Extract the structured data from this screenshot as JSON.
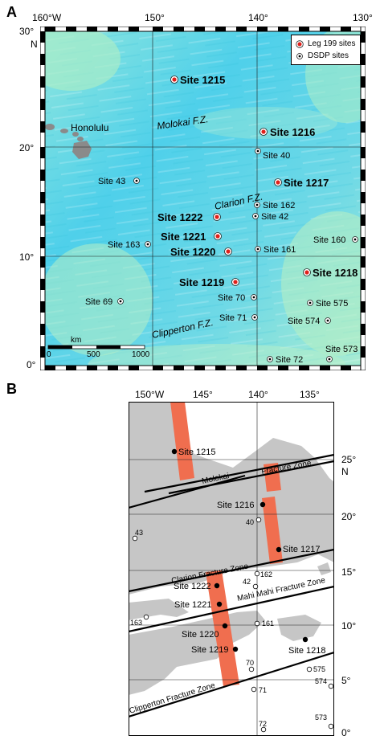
{
  "panel_a": {
    "letter": "A",
    "lon_labels": [
      "160°W",
      "150°",
      "140°",
      "130°"
    ],
    "lat_labels": [
      "30°",
      "N",
      "20°",
      "10°",
      "0°"
    ],
    "legend": {
      "leg": "Leg 199 sites",
      "dsdp": "DSDP sites"
    },
    "city": "Honolulu",
    "fracture_zones": [
      "Molokai F.Z.",
      "Clarion F.Z.",
      "Clipperton F.Z."
    ],
    "leg_sites": [
      "Site 1215",
      "Site 1216",
      "Site 1217",
      "Site 1222",
      "Site 1221",
      "Site 1220",
      "Site 1218",
      "Site 1219"
    ],
    "dsdp_sites": [
      "Site 40",
      "Site 43",
      "Site 162",
      "Site 42",
      "Site 163",
      "Site 161",
      "Site 160",
      "Site 69",
      "Site 70",
      "Site 71",
      "Site 575",
      "Site 574",
      "Site 72",
      "Site 573"
    ],
    "scale": {
      "unit": "km",
      "ticks": [
        "0",
        "500",
        "1000"
      ]
    }
  },
  "panel_b": {
    "letter": "B",
    "lon_labels": [
      "150°W",
      "145°",
      "140°",
      "135°"
    ],
    "lat_labels": [
      "25°",
      "N",
      "20°",
      "15°",
      "10°",
      "5°",
      "0°"
    ],
    "fracture_zones": [
      "Molokai",
      "Fracture Zone",
      "Clarion Fracture Zone",
      "Mahi Mahi Fracture Zone",
      "Clipperton Fracture Zone"
    ],
    "leg_sites": [
      "Site 1215",
      "Site 1216",
      "Site 1217",
      "Site 1222",
      "Site 1221",
      "Site 1220",
      "Site 1219",
      "Site 1218"
    ],
    "dsdp_sites": [
      "43",
      "40",
      "42",
      "162",
      "163",
      "161",
      "70",
      "71",
      "72",
      "575",
      "574",
      "573"
    ]
  },
  "colors": {
    "ocean": "#5fd6e8",
    "shallow": "#a8ecd0",
    "highlight": "#f06e4f",
    "land_gray": "#c8c8c8",
    "site_red": "#e0201a"
  }
}
